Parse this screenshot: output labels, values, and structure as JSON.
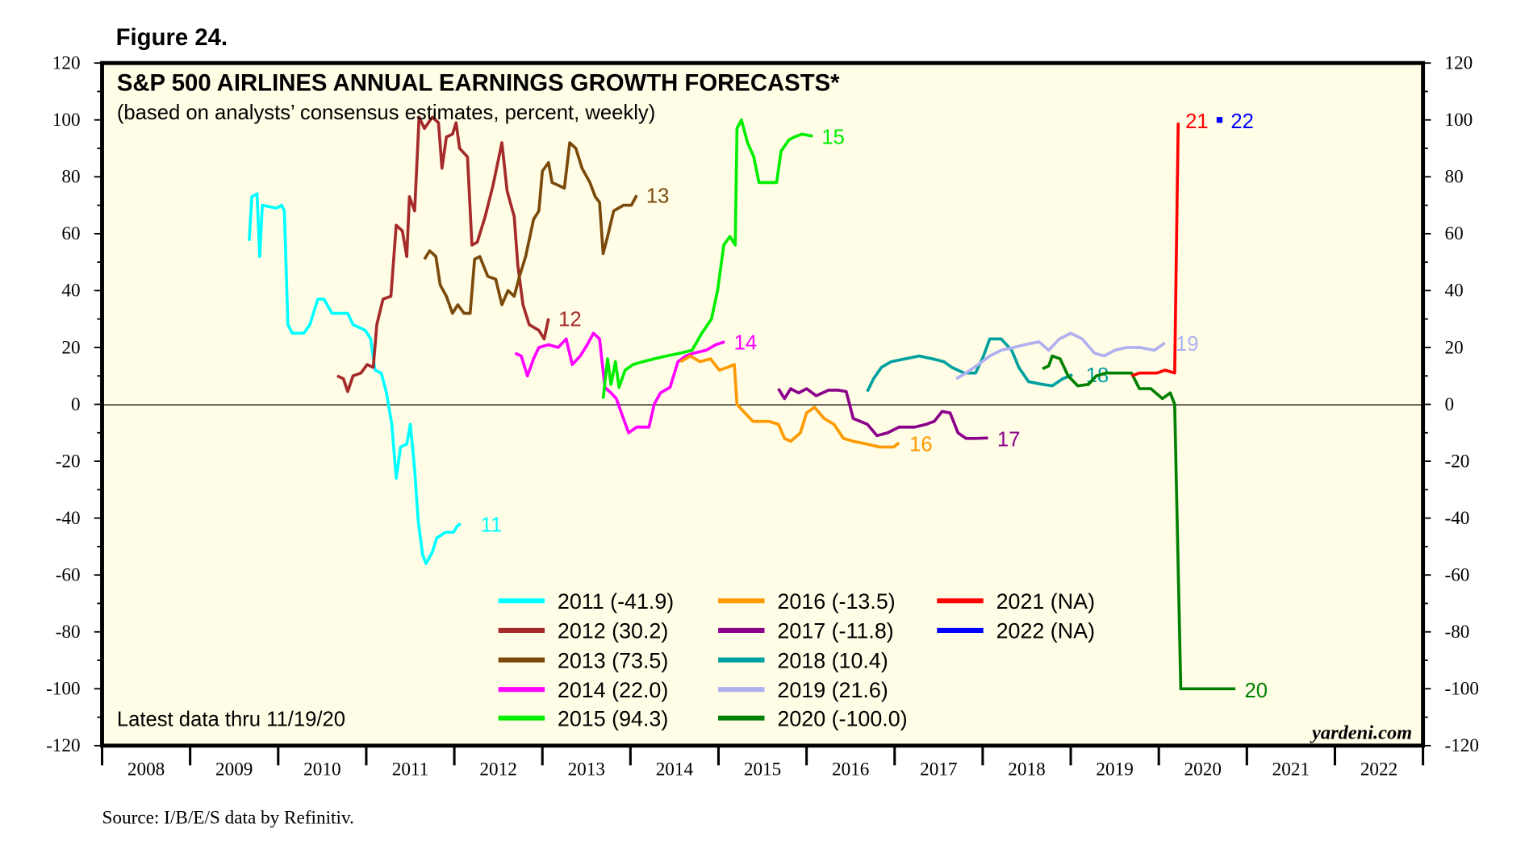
{
  "figure_label": "Figure 24.",
  "source": "Source: I/B/E/S data by Refinitiv.",
  "chart_data": {
    "type": "line",
    "title": "S&P 500 AIRLINES ANNUAL EARNINGS GROWTH FORECASTS*",
    "subtitle": "(based on analysts’ consensus estimates, percent, weekly)",
    "note": "Latest data thru 11/19/20",
    "watermark": "yardeni.com",
    "xlabel": "",
    "ylabel": "",
    "xlim": [
      2008,
      2023
    ],
    "ylim": [
      -120,
      120
    ],
    "x_ticks": [
      "2008",
      "2009",
      "2010",
      "2011",
      "2012",
      "2013",
      "2014",
      "2015",
      "2016",
      "2017",
      "2018",
      "2019",
      "2020",
      "2021",
      "2022"
    ],
    "y_ticks": [
      120,
      100,
      80,
      60,
      40,
      20,
      0,
      -20,
      -40,
      -60,
      -80,
      -100,
      -120
    ],
    "grid": false,
    "zero_line": true,
    "legend_placement": "bottom-center",
    "series": [
      {
        "name": "2011 (-41.9)",
        "label": "11",
        "color": "#00ffff",
        "points": [
          [
            2009.67,
            57.5
          ],
          [
            2009.7,
            73
          ],
          [
            2009.76,
            74
          ],
          [
            2009.79,
            52
          ],
          [
            2009.82,
            70
          ],
          [
            2009.98,
            69
          ],
          [
            2010.04,
            70
          ],
          [
            2010.07,
            68
          ],
          [
            2010.11,
            28
          ],
          [
            2010.16,
            25
          ],
          [
            2010.29,
            25
          ],
          [
            2010.36,
            28
          ],
          [
            2010.45,
            37
          ],
          [
            2010.52,
            37
          ],
          [
            2010.61,
            32
          ],
          [
            2010.79,
            32
          ],
          [
            2010.85,
            28
          ],
          [
            2010.99,
            26
          ],
          [
            2011.05,
            23
          ],
          [
            2011.1,
            12
          ],
          [
            2011.17,
            11
          ],
          [
            2011.23,
            4
          ],
          [
            2011.29,
            -7
          ],
          [
            2011.34,
            -26
          ],
          [
            2011.39,
            -15
          ],
          [
            2011.46,
            -14
          ],
          [
            2011.5,
            -7
          ],
          [
            2011.55,
            -23
          ],
          [
            2011.59,
            -41
          ],
          [
            2011.64,
            -53
          ],
          [
            2011.68,
            -56
          ],
          [
            2011.75,
            -52
          ],
          [
            2011.8,
            -47
          ],
          [
            2011.9,
            -45
          ],
          [
            2011.99,
            -45
          ],
          [
            2012.03,
            -43
          ],
          [
            2012.07,
            -41.9
          ]
        ]
      },
      {
        "name": "2012 (30.2)",
        "label": "12",
        "color": "#a52a2a",
        "points": [
          [
            2010.67,
            10
          ],
          [
            2010.74,
            9
          ],
          [
            2010.79,
            4.5
          ],
          [
            2010.85,
            10
          ],
          [
            2010.94,
            11
          ],
          [
            2011.01,
            14
          ],
          [
            2011.08,
            13
          ],
          [
            2011.12,
            28
          ],
          [
            2011.19,
            37
          ],
          [
            2011.28,
            38
          ],
          [
            2011.34,
            63
          ],
          [
            2011.41,
            61
          ],
          [
            2011.46,
            52
          ],
          [
            2011.49,
            73
          ],
          [
            2011.55,
            68
          ],
          [
            2011.6,
            101
          ],
          [
            2011.66,
            97
          ],
          [
            2011.75,
            101
          ],
          [
            2011.82,
            99
          ],
          [
            2011.86,
            83
          ],
          [
            2011.91,
            94
          ],
          [
            2011.98,
            95
          ],
          [
            2012.02,
            99
          ],
          [
            2012.06,
            90
          ],
          [
            2012.15,
            87
          ],
          [
            2012.2,
            56
          ],
          [
            2012.26,
            57
          ],
          [
            2012.35,
            66
          ],
          [
            2012.44,
            77
          ],
          [
            2012.54,
            92
          ],
          [
            2012.6,
            75
          ],
          [
            2012.68,
            66
          ],
          [
            2012.72,
            49
          ],
          [
            2012.78,
            35
          ],
          [
            2012.85,
            28
          ],
          [
            2012.96,
            26
          ],
          [
            2013.02,
            23
          ],
          [
            2013.07,
            30.2
          ]
        ]
      },
      {
        "name": "2013 (73.5)",
        "label": "13",
        "color": "#7b4a0a",
        "points": [
          [
            2011.66,
            51
          ],
          [
            2011.72,
            54
          ],
          [
            2011.79,
            52
          ],
          [
            2011.84,
            42
          ],
          [
            2011.91,
            38
          ],
          [
            2011.98,
            32
          ],
          [
            2012.04,
            35
          ],
          [
            2012.11,
            32
          ],
          [
            2012.18,
            32
          ],
          [
            2012.23,
            51
          ],
          [
            2012.29,
            52
          ],
          [
            2012.38,
            45
          ],
          [
            2012.47,
            44
          ],
          [
            2012.54,
            35
          ],
          [
            2012.61,
            40
          ],
          [
            2012.68,
            38
          ],
          [
            2012.74,
            45
          ],
          [
            2012.81,
            52
          ],
          [
            2012.9,
            65
          ],
          [
            2012.96,
            68
          ],
          [
            2013.0,
            82
          ],
          [
            2013.07,
            85
          ],
          [
            2013.11,
            78
          ],
          [
            2013.25,
            76
          ],
          [
            2013.31,
            92
          ],
          [
            2013.38,
            90
          ],
          [
            2013.45,
            83
          ],
          [
            2013.54,
            78
          ],
          [
            2013.6,
            73
          ],
          [
            2013.65,
            71
          ],
          [
            2013.69,
            53
          ],
          [
            2013.74,
            59
          ],
          [
            2013.81,
            68
          ],
          [
            2013.92,
            70
          ],
          [
            2014.01,
            70
          ],
          [
            2014.07,
            73.5
          ]
        ]
      },
      {
        "name": "2014 (22.0)",
        "label": "14",
        "color": "#ff00ff",
        "points": [
          [
            2012.69,
            18
          ],
          [
            2012.76,
            17
          ],
          [
            2012.83,
            10
          ],
          [
            2012.9,
            16
          ],
          [
            2012.96,
            20
          ],
          [
            2013.07,
            21
          ],
          [
            2013.18,
            20
          ],
          [
            2013.27,
            23
          ],
          [
            2013.34,
            14
          ],
          [
            2013.43,
            17
          ],
          [
            2013.51,
            21
          ],
          [
            2013.58,
            25
          ],
          [
            2013.65,
            23
          ],
          [
            2013.71,
            6
          ],
          [
            2013.78,
            4
          ],
          [
            2013.84,
            2
          ],
          [
            2013.92,
            -5
          ],
          [
            2013.98,
            -10
          ],
          [
            2014.07,
            -8
          ],
          [
            2014.21,
            -8
          ],
          [
            2014.27,
            0
          ],
          [
            2014.34,
            4
          ],
          [
            2014.45,
            6
          ],
          [
            2014.54,
            15
          ],
          [
            2014.63,
            17
          ],
          [
            2014.72,
            18
          ],
          [
            2014.86,
            19
          ],
          [
            2014.97,
            21
          ],
          [
            2015.07,
            22
          ]
        ]
      },
      {
        "name": "2015 (94.3)",
        "label": "15",
        "color": "#00ee00",
        "points": [
          [
            2013.69,
            2
          ],
          [
            2013.74,
            16
          ],
          [
            2013.78,
            7
          ],
          [
            2013.83,
            15
          ],
          [
            2013.87,
            6
          ],
          [
            2013.94,
            12
          ],
          [
            2014.03,
            14
          ],
          [
            2014.14,
            15
          ],
          [
            2014.27,
            16
          ],
          [
            2014.41,
            17
          ],
          [
            2014.57,
            18
          ],
          [
            2014.7,
            19
          ],
          [
            2014.81,
            25
          ],
          [
            2014.92,
            30
          ],
          [
            2014.99,
            40
          ],
          [
            2015.06,
            56
          ],
          [
            2015.13,
            59
          ],
          [
            2015.19,
            56
          ],
          [
            2015.21,
            97
          ],
          [
            2015.26,
            100
          ],
          [
            2015.33,
            92
          ],
          [
            2015.4,
            87
          ],
          [
            2015.46,
            78
          ],
          [
            2015.57,
            78
          ],
          [
            2015.66,
            78
          ],
          [
            2015.71,
            89
          ],
          [
            2015.8,
            93
          ],
          [
            2015.86,
            94
          ],
          [
            2015.95,
            95
          ],
          [
            2016.07,
            94.3
          ]
        ]
      },
      {
        "name": "2016 (-13.5)",
        "label": "16",
        "color": "#ff9900",
        "points": [
          [
            2014.57,
            15
          ],
          [
            2014.68,
            17
          ],
          [
            2014.79,
            15
          ],
          [
            2014.91,
            16
          ],
          [
            2015.01,
            12
          ],
          [
            2015.1,
            13
          ],
          [
            2015.18,
            14
          ],
          [
            2015.21,
            0
          ],
          [
            2015.3,
            -3
          ],
          [
            2015.39,
            -6
          ],
          [
            2015.57,
            -6
          ],
          [
            2015.68,
            -7
          ],
          [
            2015.75,
            -12
          ],
          [
            2015.82,
            -13
          ],
          [
            2015.93,
            -10
          ],
          [
            2016.0,
            -3
          ],
          [
            2016.09,
            -1
          ],
          [
            2016.2,
            -5
          ],
          [
            2016.31,
            -7
          ],
          [
            2016.42,
            -12
          ],
          [
            2016.53,
            -13
          ],
          [
            2016.69,
            -14
          ],
          [
            2016.83,
            -15
          ],
          [
            2016.92,
            -15
          ],
          [
            2016.99,
            -15
          ],
          [
            2017.05,
            -13.5
          ]
        ]
      },
      {
        "name": "2017 (-11.8)",
        "label": "17",
        "color": "#8b008b",
        "points": [
          [
            2015.68,
            5.5
          ],
          [
            2015.75,
            2
          ],
          [
            2015.82,
            5.5
          ],
          [
            2015.91,
            4
          ],
          [
            2016.0,
            5.5
          ],
          [
            2016.11,
            3
          ],
          [
            2016.25,
            5
          ],
          [
            2016.36,
            5
          ],
          [
            2016.45,
            4.5
          ],
          [
            2016.53,
            -5
          ],
          [
            2016.69,
            -7
          ],
          [
            2016.8,
            -11
          ],
          [
            2016.92,
            -10
          ],
          [
            2017.05,
            -8
          ],
          [
            2017.23,
            -8
          ],
          [
            2017.36,
            -7
          ],
          [
            2017.45,
            -6
          ],
          [
            2017.54,
            -2.5
          ],
          [
            2017.63,
            -3
          ],
          [
            2017.72,
            -10
          ],
          [
            2017.81,
            -12
          ],
          [
            2017.92,
            -12
          ],
          [
            2018.06,
            -11.8
          ]
        ]
      },
      {
        "name": "2018 (10.4)",
        "label": "18",
        "color": "#00a0a0",
        "points": [
          [
            2016.69,
            4.5
          ],
          [
            2016.76,
            9
          ],
          [
            2016.85,
            13
          ],
          [
            2016.96,
            15
          ],
          [
            2017.12,
            16
          ],
          [
            2017.28,
            17
          ],
          [
            2017.43,
            16
          ],
          [
            2017.56,
            15
          ],
          [
            2017.65,
            13
          ],
          [
            2017.79,
            11
          ],
          [
            2017.92,
            11
          ],
          [
            2018.01,
            17
          ],
          [
            2018.08,
            23
          ],
          [
            2018.21,
            23
          ],
          [
            2018.33,
            19
          ],
          [
            2018.41,
            13
          ],
          [
            2018.52,
            8
          ],
          [
            2018.68,
            7
          ],
          [
            2018.79,
            6.5
          ],
          [
            2018.91,
            9
          ],
          [
            2019.02,
            10.4
          ]
        ]
      },
      {
        "name": "2019 (21.6)",
        "label": "19",
        "color": "#b0b0f0",
        "points": [
          [
            2017.7,
            9
          ],
          [
            2017.81,
            11
          ],
          [
            2017.95,
            14
          ],
          [
            2018.08,
            17
          ],
          [
            2018.21,
            19
          ],
          [
            2018.35,
            20
          ],
          [
            2018.48,
            21
          ],
          [
            2018.64,
            22
          ],
          [
            2018.75,
            19
          ],
          [
            2018.87,
            23
          ],
          [
            2019.0,
            25
          ],
          [
            2019.13,
            23
          ],
          [
            2019.27,
            18
          ],
          [
            2019.38,
            17
          ],
          [
            2019.5,
            19
          ],
          [
            2019.63,
            20
          ],
          [
            2019.79,
            20
          ],
          [
            2019.95,
            19
          ],
          [
            2020.07,
            21.6
          ]
        ]
      },
      {
        "name": "2020 (-100.0)",
        "label": "20",
        "color": "#008000",
        "points": [
          [
            2018.68,
            12.5
          ],
          [
            2018.75,
            13.5
          ],
          [
            2018.79,
            17
          ],
          [
            2018.88,
            16
          ],
          [
            2018.97,
            10
          ],
          [
            2019.08,
            6.5
          ],
          [
            2019.2,
            7
          ],
          [
            2019.29,
            10
          ],
          [
            2019.4,
            11
          ],
          [
            2019.53,
            11
          ],
          [
            2019.69,
            11
          ],
          [
            2019.78,
            5.5
          ],
          [
            2019.91,
            5.5
          ],
          [
            2020.04,
            2
          ],
          [
            2020.13,
            4
          ],
          [
            2020.18,
            0
          ],
          [
            2020.25,
            -100
          ],
          [
            2020.87,
            -100
          ]
        ]
      },
      {
        "name": "2021 (NA)",
        "label": "21",
        "color": "#ff0000",
        "points": [
          [
            2019.69,
            10
          ],
          [
            2019.78,
            11
          ],
          [
            2019.87,
            11
          ],
          [
            2019.98,
            11
          ],
          [
            2020.07,
            12
          ],
          [
            2020.18,
            11
          ],
          [
            2020.22,
            99
          ]
        ]
      },
      {
        "name": "2022 (NA)",
        "label": "22",
        "color": "#0000ff",
        "points": [
          [
            2020.69,
            100
          ]
        ]
      }
    ]
  }
}
